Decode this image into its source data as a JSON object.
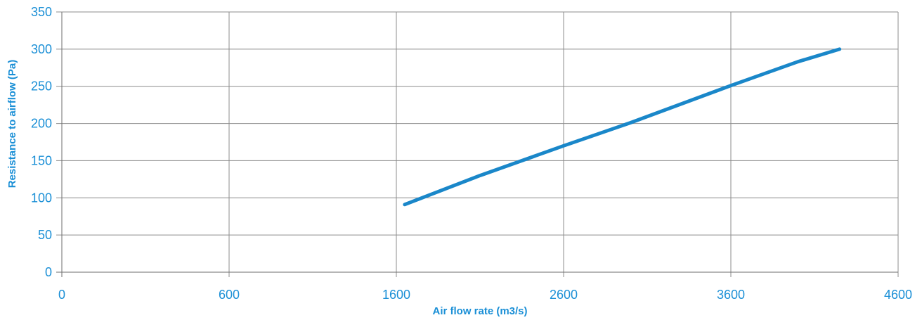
{
  "chart_data": {
    "type": "line",
    "title": "",
    "xlabel": "Air flow rate (m3/s)",
    "ylabel": "Resistance to airflow (Pa)",
    "x_ticks": [
      0,
      600,
      1600,
      2600,
      3600,
      4600
    ],
    "y_ticks": [
      0,
      50,
      100,
      150,
      200,
      250,
      300,
      350
    ],
    "ylim": [
      0,
      350
    ],
    "grid": true,
    "series": [
      {
        "color": "#1a87c9",
        "x": [
          1650,
          2100,
          2600,
          3000,
          3600,
          4000,
          4250
        ],
        "y": [
          91,
          130,
          170,
          201,
          251,
          283,
          300
        ]
      }
    ]
  }
}
